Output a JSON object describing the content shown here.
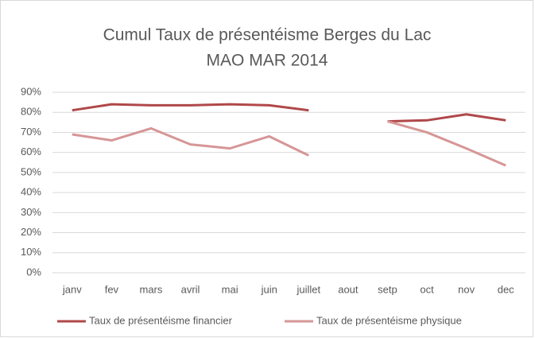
{
  "chart_data": {
    "type": "line",
    "title": "Cumul Taux de présentéisme Berges du Lac",
    "subtitle": "MAO MAR 2014",
    "categories": [
      "janv",
      "fev",
      "mars",
      "avril",
      "mai",
      "juin",
      "juillet",
      "aout",
      "setp",
      "oct",
      "nov",
      "dec"
    ],
    "series": [
      {
        "name": "Taux de présentéisme financier",
        "color": "#b0484a",
        "values": [
          81,
          84,
          83.5,
          83.5,
          84,
          83.5,
          81,
          null,
          75.5,
          76,
          79,
          76
        ]
      },
      {
        "name": "Taux de présentéisme physique",
        "color": "#d69696",
        "values": [
          69,
          66,
          72,
          64,
          62,
          68,
          58.5,
          null,
          75.5,
          70,
          62,
          53.5
        ]
      }
    ],
    "ylim": [
      0,
      90
    ],
    "yticks": [
      {
        "value": 0,
        "label": "0%"
      },
      {
        "value": 10,
        "label": "10%"
      },
      {
        "value": 20,
        "label": "20%"
      },
      {
        "value": 30,
        "label": "30%"
      },
      {
        "value": 40,
        "label": "40%"
      },
      {
        "value": 50,
        "label": "50%"
      },
      {
        "value": 60,
        "label": "60%"
      },
      {
        "value": 70,
        "label": "70%"
      },
      {
        "value": 80,
        "label": "80%"
      },
      {
        "value": 90,
        "label": "90%"
      }
    ],
    "grid": true,
    "legend": "bottom"
  }
}
